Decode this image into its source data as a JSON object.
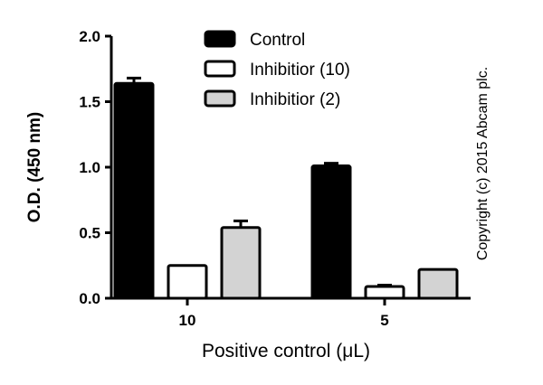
{
  "chart_data": {
    "type": "bar",
    "title": "",
    "xlabel": "Positive control (μL)",
    "ylabel": "O.D. (450 nm)",
    "ylim": [
      0,
      2.0
    ],
    "yticks": [
      "0.0",
      "0.5",
      "1.0",
      "1.5",
      "2.0"
    ],
    "categories": [
      "10",
      "5"
    ],
    "series": [
      {
        "name": "Control",
        "values": [
          1.64,
          1.01
        ],
        "errors": [
          0.04,
          0.02
        ],
        "color": "#000000"
      },
      {
        "name": "Inhibitior (10)",
        "values": [
          0.25,
          0.09
        ],
        "errors": [
          0.0,
          0.01
        ],
        "color": "#ffffff"
      },
      {
        "name": "Inhibitior (2)",
        "values": [
          0.54,
          0.22
        ],
        "errors": [
          0.05,
          0.0
        ],
        "color": "#d3d3d3"
      }
    ],
    "legend_position": "top",
    "grid": false,
    "copyright": "Copyright (c) 2015 Abcam plc."
  }
}
